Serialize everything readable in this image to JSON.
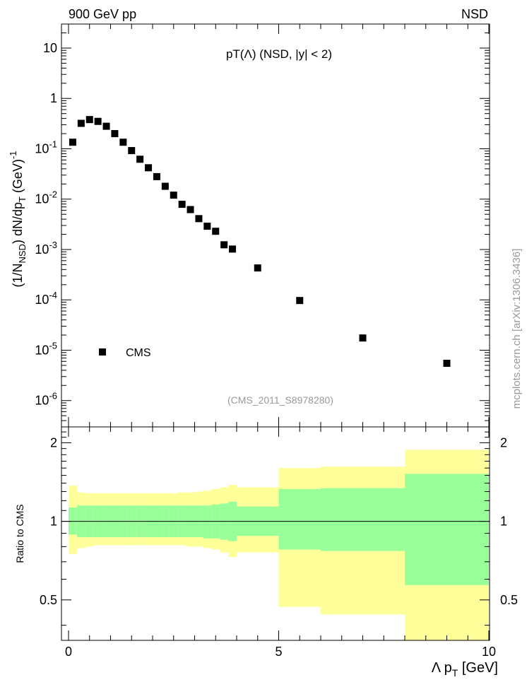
{
  "chart_data": {
    "type": "scatter",
    "header_left": "900 GeV pp",
    "header_right": "NSD",
    "title": "pT(Λ) (NSD, |y| < 2)",
    "analysis_label": "(CMS_2011_S8978280)",
    "watermark": "mcplots.cern.ch [arXiv:1306.3436]",
    "ylabel_main": "(1/N_NSD) dN/dp_T (GeV)^-1",
    "ylabel_ratio": "Ratio to CMS",
    "xlabel": "Λ p_T [GeV]",
    "xlim": [
      0,
      10
    ],
    "ylim_main": [
      3e-07,
      30
    ],
    "ylim_ratio": [
      0.35,
      2.3
    ],
    "x_ticks": [
      "0",
      "5",
      "10"
    ],
    "y_ticks_main": [
      "10^-6",
      "10^-5",
      "10^-4",
      "10^-3",
      "10^-2",
      "10^-1",
      "1",
      "10"
    ],
    "y_ticks_ratio": [
      "0.5",
      "1",
      "2"
    ],
    "legend": [
      {
        "label": "CMS",
        "marker": "square",
        "color": "#000000"
      }
    ],
    "series": [
      {
        "name": "CMS",
        "x": [
          0.1,
          0.3,
          0.5,
          0.7,
          0.9,
          1.1,
          1.3,
          1.5,
          1.7,
          1.9,
          2.1,
          2.3,
          2.5,
          2.7,
          2.9,
          3.1,
          3.3,
          3.5,
          3.7,
          3.9,
          4.5,
          5.5,
          7.0,
          9.0
        ],
        "y": [
          0.135,
          0.32,
          0.38,
          0.35,
          0.28,
          0.2,
          0.135,
          0.092,
          0.062,
          0.042,
          0.028,
          0.018,
          0.012,
          0.0079,
          0.0062,
          0.0041,
          0.0029,
          0.0023,
          0.00124,
          0.00102,
          0.00043,
          9.7e-05,
          1.75e-05,
          5.5e-06
        ]
      }
    ],
    "ratio_bands": {
      "bins": [
        [
          0.0,
          0.2
        ],
        [
          0.2,
          0.4
        ],
        [
          0.4,
          0.6
        ],
        [
          0.6,
          0.8
        ],
        [
          0.8,
          1.0
        ],
        [
          1.0,
          1.2
        ],
        [
          1.2,
          1.4
        ],
        [
          1.4,
          1.6
        ],
        [
          1.6,
          1.8
        ],
        [
          1.8,
          2.0
        ],
        [
          2.0,
          2.2
        ],
        [
          2.2,
          2.4
        ],
        [
          2.4,
          2.6
        ],
        [
          2.6,
          2.8
        ],
        [
          2.8,
          3.0
        ],
        [
          3.0,
          3.2
        ],
        [
          3.2,
          3.4
        ],
        [
          3.4,
          3.6
        ],
        [
          3.6,
          3.8
        ],
        [
          3.8,
          4.0
        ],
        [
          4.0,
          5.0
        ],
        [
          5.0,
          6.0
        ],
        [
          6.0,
          8.0
        ],
        [
          8.0,
          10.0
        ]
      ],
      "yellow_lo": [
        0.75,
        0.79,
        0.8,
        0.81,
        0.81,
        0.81,
        0.81,
        0.81,
        0.81,
        0.81,
        0.81,
        0.81,
        0.81,
        0.81,
        0.8,
        0.8,
        0.79,
        0.78,
        0.76,
        0.73,
        0.76,
        0.47,
        0.44,
        0.35
      ],
      "yellow_hi": [
        1.37,
        1.29,
        1.28,
        1.28,
        1.28,
        1.28,
        1.28,
        1.28,
        1.28,
        1.28,
        1.28,
        1.28,
        1.28,
        1.29,
        1.29,
        1.3,
        1.31,
        1.33,
        1.35,
        1.38,
        1.35,
        1.6,
        1.62,
        1.88
      ],
      "green_lo": [
        0.89,
        0.87,
        0.87,
        0.87,
        0.87,
        0.87,
        0.87,
        0.87,
        0.87,
        0.87,
        0.87,
        0.87,
        0.87,
        0.87,
        0.87,
        0.87,
        0.86,
        0.86,
        0.85,
        0.84,
        0.88,
        0.78,
        0.77,
        0.57
      ],
      "green_hi": [
        1.13,
        1.15,
        1.15,
        1.15,
        1.15,
        1.15,
        1.15,
        1.15,
        1.15,
        1.15,
        1.15,
        1.15,
        1.15,
        1.15,
        1.15,
        1.15,
        1.15,
        1.16,
        1.17,
        1.19,
        1.14,
        1.33,
        1.34,
        1.52
      ],
      "yellow_color": "#ffff99",
      "green_color": "#99ff99"
    }
  }
}
